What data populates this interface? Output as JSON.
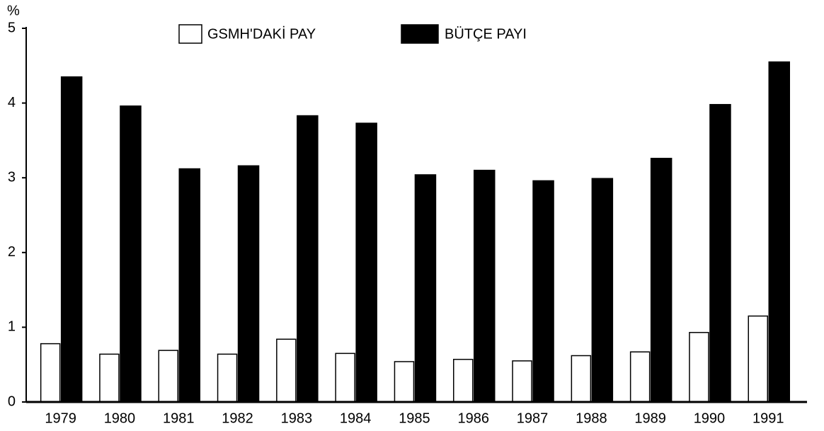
{
  "chart_data": {
    "type": "bar",
    "y_label": "%",
    "categories": [
      "1979",
      "1980",
      "1981",
      "1982",
      "1983",
      "1984",
      "1985",
      "1986",
      "1987",
      "1988",
      "1989",
      "1990",
      "1991"
    ],
    "series": [
      {
        "name": "GSMH'DAKİ PAY",
        "color": "#ffffff",
        "values": [
          0.78,
          0.64,
          0.69,
          0.64,
          0.84,
          0.65,
          0.54,
          0.57,
          0.55,
          0.62,
          0.67,
          0.93,
          1.15
        ]
      },
      {
        "name": "BÜTÇE PAYI",
        "color": "#000000",
        "values": [
          4.35,
          3.96,
          3.12,
          3.16,
          3.83,
          3.73,
          3.04,
          3.1,
          2.96,
          2.99,
          3.26,
          3.98,
          4.55
        ]
      }
    ],
    "ylim": [
      0,
      5
    ],
    "yticks": [
      0,
      1,
      2,
      3,
      4,
      5
    ],
    "legend": "top"
  }
}
